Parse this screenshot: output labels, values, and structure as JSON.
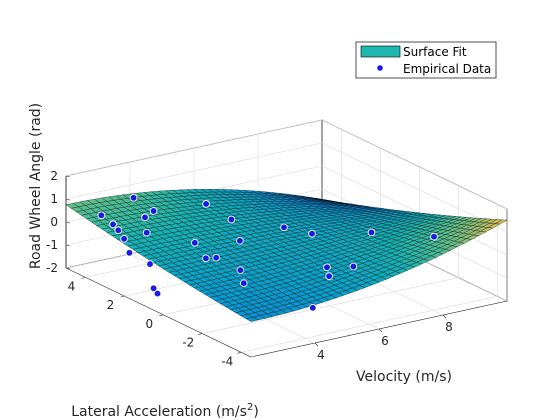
{
  "chart_data": {
    "type": "surface",
    "title": "",
    "xlabel": "Velocity (m/s)",
    "ylabel": "Lateral Acceleration (m/s",
    "ylabel_sup": "2",
    "ylabel_end": ")",
    "zlabel": "Road Wheel Angle (rad)",
    "xlim": [
      2,
      10
    ],
    "ylim": [
      -4.5,
      5
    ],
    "zlim": [
      -2,
      2
    ],
    "x_ticks": [
      4,
      6,
      8
    ],
    "y_ticks": [
      -4,
      -2,
      0,
      2,
      4
    ],
    "z_ticks": [
      -2,
      -1,
      0,
      1,
      2
    ],
    "x_tick_labels": [
      "4",
      "6",
      "8"
    ],
    "y_tick_labels": [
      "-4",
      "-2",
      "0",
      "2",
      "4"
    ],
    "z_tick_labels": [
      "-2",
      "-1",
      "0",
      "1",
      "2"
    ],
    "grid": true,
    "colormap": "parula",
    "surface_color_legend": "#1FB7B0",
    "point_color": "#1A1AE6",
    "legend": {
      "placement": "top-right",
      "entries": [
        "Surface Fit",
        "Empirical Data"
      ]
    },
    "surface_model": "z = 0.125*(1 - 0.055*(x-2)^2)*y + 0.005*y^2",
    "series": [
      {
        "name": "Empirical Data",
        "points": [
          {
            "x": 2.8,
            "y": 4.5,
            "z": 0.25
          },
          {
            "x": 3.0,
            "y": 2.5,
            "z": 0.25
          },
          {
            "x": 2.8,
            "y": 3.9,
            "z": 0.1
          },
          {
            "x": 2.6,
            "y": 3.3,
            "z": 0.15
          },
          {
            "x": 2.6,
            "y": 3.0,
            "z": -0.1
          },
          {
            "x": 2.4,
            "y": 2.4,
            "z": -0.4
          },
          {
            "x": 2.0,
            "y": 0.5,
            "z": -1.05
          },
          {
            "x": 2.0,
            "y": 0.3,
            "z": -1.2
          },
          {
            "x": 3.2,
            "y": 3.5,
            "z": 1.3
          },
          {
            "x": 3.4,
            "y": 2.8,
            "z": 0.95
          },
          {
            "x": 3.8,
            "y": 3.9,
            "z": 0.1
          },
          {
            "x": 4.2,
            "y": 2.0,
            "z": -0.35
          },
          {
            "x": 5.1,
            "y": 1.6,
            "z": 0.55
          },
          {
            "x": 5.0,
            "y": 1.0,
            "z": -0.1
          },
          {
            "x": 5.1,
            "y": 2.9,
            "z": 0.7
          },
          {
            "x": 4.0,
            "y": 1.1,
            "z": -0.6
          },
          {
            "x": 4.2,
            "y": 0.9,
            "z": -0.55
          },
          {
            "x": 2.8,
            "y": 2.0,
            "z": -0.85
          },
          {
            "x": 3.6,
            "y": -1.5,
            "z": -0.5
          },
          {
            "x": 3.8,
            "y": -1.0,
            "z": -0.2
          },
          {
            "x": 6.5,
            "y": 1.2,
            "z": -0.05
          },
          {
            "x": 6.4,
            "y": -0.4,
            "z": 0.35
          },
          {
            "x": 6.2,
            "y": -1.5,
            "z": -0.6
          },
          {
            "x": 6.6,
            "y": -2.2,
            "z": -0.4
          },
          {
            "x": 5.9,
            "y": -2.1,
            "z": -0.65
          },
          {
            "x": 8.2,
            "y": -0.5,
            "z": -0.1
          },
          {
            "x": 9.3,
            "y": -1.9,
            "z": -0.05
          },
          {
            "x": 4.6,
            "y": -3.4,
            "z": -1.1
          }
        ]
      }
    ]
  }
}
